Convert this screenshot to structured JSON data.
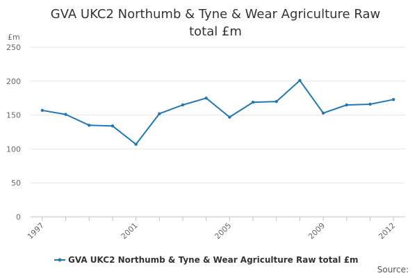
{
  "chart_data": {
    "type": "line",
    "title": "GVA UKC2 Northumb & Tyne & Wear Agriculture Raw total £m",
    "ylabel": "£m",
    "xlabel": "",
    "ylim": [
      0,
      250
    ],
    "yticks": [
      "0",
      "50",
      "100",
      "150",
      "200",
      "250"
    ],
    "xtick_labels": [
      "1997",
      "2001",
      "2005",
      "2009",
      "2012"
    ],
    "grid": true,
    "legend_position": "bottom",
    "x": [
      1997,
      1998,
      1999,
      2000,
      2001,
      2002,
      2003,
      2004,
      2005,
      2006,
      2007,
      2008,
      2009,
      2010,
      2011,
      2012
    ],
    "series": [
      {
        "name": "GVA UKC2 Northumb & Tyne & Wear Agriculture Raw total £m",
        "values": [
          157,
          151,
          135,
          134,
          107,
          152,
          165,
          175,
          147,
          169,
          170,
          201,
          153,
          165,
          166,
          173
        ]
      }
    ]
  },
  "source_label": "Source:",
  "colors": {
    "series": "#1f78b4",
    "grid": "#e6e6e6",
    "axis": "#c0c0c0",
    "text": "#666666"
  }
}
